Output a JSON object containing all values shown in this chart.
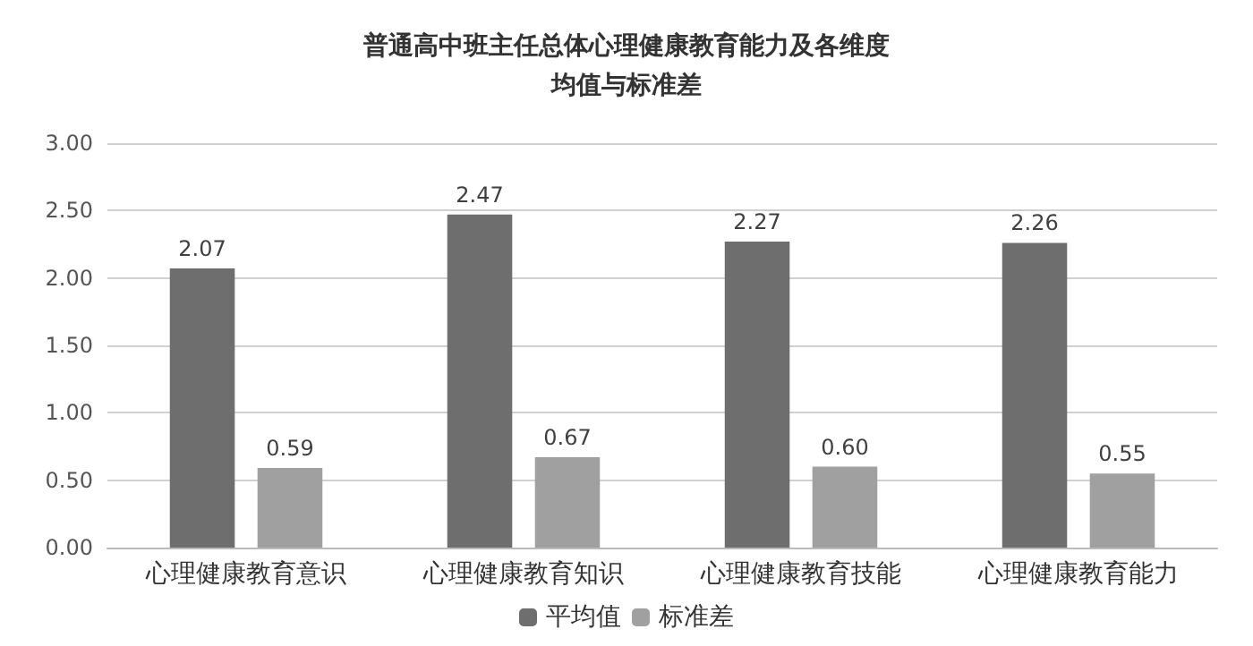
{
  "chart_data": {
    "type": "bar",
    "title": "普通高中班主任总体心理健康教育能力及各维度均值与标准差",
    "categories": [
      "心理健康教育意识",
      "心理健康教育知识",
      "心理健康教育技能",
      "心理健康教育能力"
    ],
    "series": [
      {
        "name": "平均值",
        "color": "#6e6e6e",
        "values": [
          2.07,
          2.47,
          2.27,
          2.26
        ],
        "value_labels": [
          "2.07",
          "2.47",
          "2.27",
          "2.26"
        ]
      },
      {
        "name": "标准差",
        "color": "#a0a0a0",
        "values": [
          0.59,
          0.67,
          0.6,
          0.55
        ],
        "value_labels": [
          "0.59",
          "0.67",
          "0.60",
          "0.55"
        ]
      }
    ],
    "ylim": [
      0,
      3
    ],
    "yticks": [
      {
        "value": 0,
        "label": "0.00"
      },
      {
        "value": 0.5,
        "label": "0.50"
      },
      {
        "value": 1,
        "label": "1.00"
      },
      {
        "value": 1.5,
        "label": "1.50"
      },
      {
        "value": 2,
        "label": "2.00"
      },
      {
        "value": 2.5,
        "label": "2.50"
      },
      {
        "value": 3,
        "label": "3.00"
      }
    ],
    "grid": "y",
    "legend": "bottom"
  }
}
